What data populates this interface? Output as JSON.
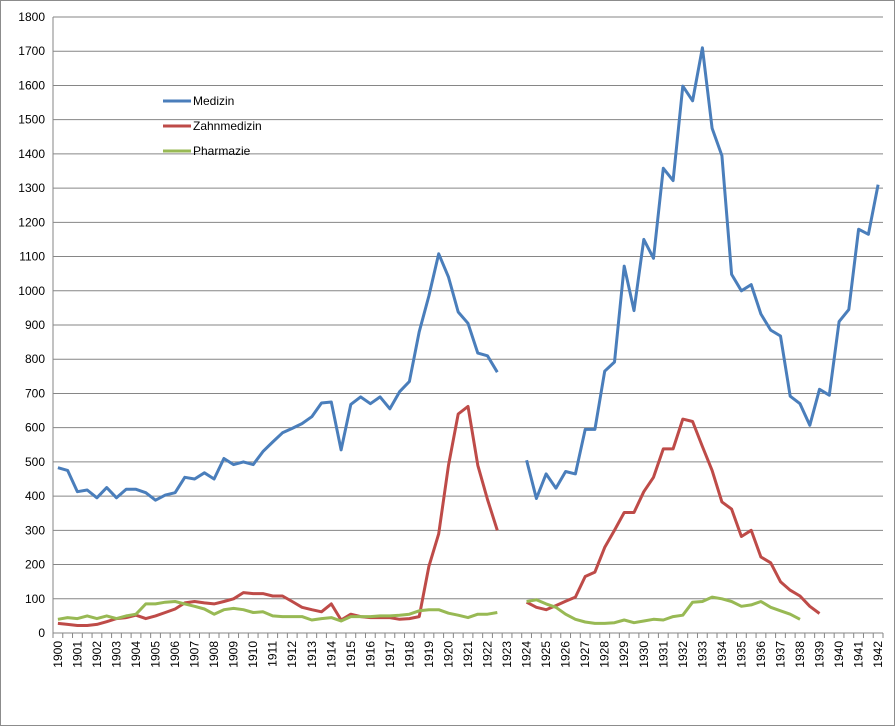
{
  "chart_data": {
    "type": "line",
    "title": "",
    "xlabel": "",
    "ylabel": "",
    "ylim": [
      0,
      1800
    ],
    "yticks": [
      0,
      100,
      200,
      300,
      400,
      500,
      600,
      700,
      800,
      900,
      1000,
      1100,
      1200,
      1300,
      1400,
      1500,
      1600,
      1700,
      1800
    ],
    "xticks": [
      1900,
      1901,
      1902,
      1903,
      1904,
      1905,
      1906,
      1907,
      1908,
      1909,
      1910,
      1911,
      1912,
      1913,
      1914,
      1915,
      1916,
      1917,
      1918,
      1919,
      1920,
      1921,
      1922,
      1923,
      1924,
      1925,
      1926,
      1927,
      1928,
      1929,
      1930,
      1931,
      1932,
      1933,
      1934,
      1935,
      1936,
      1937,
      1938,
      1939,
      1940,
      1941,
      1942
    ],
    "x_start": 1900,
    "x_step": 0.5,
    "grid": true,
    "legend_position": "top-left inside",
    "series": [
      {
        "name": "Medizin",
        "color": "#4a7ebb",
        "values": [
          483,
          475,
          413,
          418,
          395,
          425,
          395,
          420,
          420,
          410,
          388,
          403,
          410,
          455,
          450,
          468,
          450,
          510,
          492,
          500,
          492,
          530,
          558,
          585,
          598,
          612,
          632,
          672,
          675,
          535,
          668,
          690,
          670,
          690,
          655,
          705,
          735,
          880,
          985,
          1108,
          1040,
          938,
          905,
          818,
          810,
          762,
          null,
          null,
          505,
          393,
          465,
          423,
          472,
          465,
          595,
          595,
          765,
          792,
          1072,
          942,
          1150,
          1095,
          1358,
          1322,
          1598,
          1555,
          1710,
          1475,
          1395,
          1048,
          1000,
          1018,
          932,
          885,
          868,
          692,
          670,
          607,
          712,
          695,
          910,
          945,
          1180,
          1165,
          1310
        ]
      },
      {
        "name": "Zahnmedizin",
        "color": "#be4b48",
        "values": [
          28,
          25,
          22,
          22,
          25,
          33,
          42,
          45,
          52,
          42,
          50,
          60,
          70,
          88,
          92,
          88,
          85,
          92,
          100,
          118,
          115,
          115,
          108,
          108,
          92,
          75,
          68,
          62,
          85,
          38,
          55,
          48,
          45,
          45,
          45,
          40,
          42,
          48,
          195,
          290,
          490,
          640,
          662,
          490,
          390,
          300,
          null,
          null,
          90,
          75,
          68,
          80,
          93,
          105,
          165,
          178,
          250,
          300,
          352,
          352,
          413,
          455,
          538,
          538,
          625,
          618,
          545,
          475,
          383,
          362,
          282,
          300,
          222,
          205,
          150,
          125,
          108,
          78,
          57,
          null,
          null,
          null,
          null,
          null,
          null,
          null
        ]
      },
      {
        "name": "Pharmazie",
        "color": "#98b954",
        "values": [
          40,
          45,
          42,
          50,
          42,
          50,
          42,
          50,
          55,
          85,
          85,
          90,
          92,
          85,
          78,
          70,
          55,
          68,
          72,
          68,
          60,
          62,
          50,
          48,
          48,
          48,
          38,
          42,
          45,
          35,
          48,
          48,
          48,
          50,
          50,
          52,
          55,
          65,
          68,
          68,
          58,
          52,
          45,
          55,
          55,
          60,
          null,
          null,
          92,
          97,
          85,
          75,
          55,
          40,
          32,
          28,
          28,
          30,
          38,
          30,
          35,
          40,
          38,
          48,
          52,
          90,
          92,
          105,
          100,
          92,
          78,
          82,
          92,
          75,
          65,
          55,
          40,
          null,
          null,
          null,
          null,
          null,
          null,
          null,
          null
        ]
      }
    ]
  }
}
